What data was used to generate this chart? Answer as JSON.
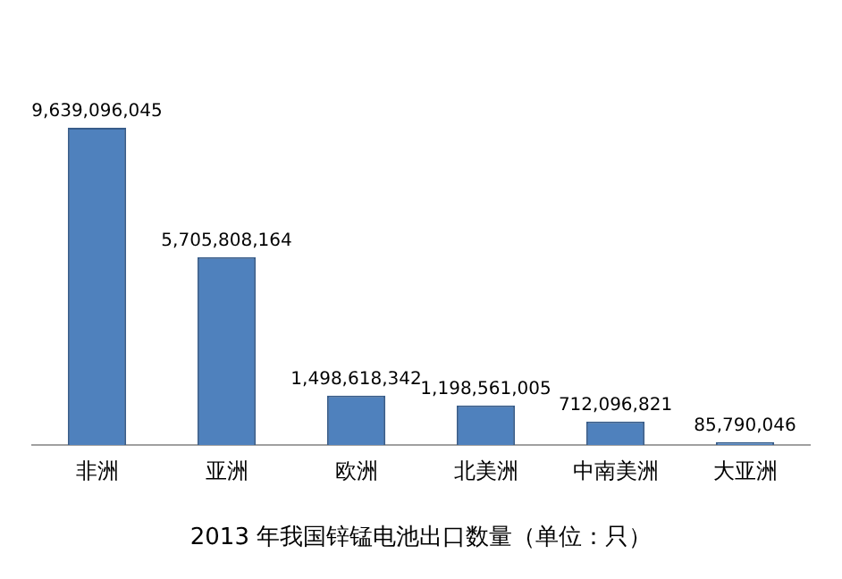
{
  "chart_data": {
    "type": "bar",
    "title": "2013 年我国锌锰电池出口数量（单位：只）",
    "categories": [
      "非洲",
      "亚洲",
      "欧洲",
      "北美洲",
      "中南美洲",
      "大亚洲"
    ],
    "values": [
      9639096045,
      5705808164,
      1498618342,
      1198561005,
      712096821,
      85790046
    ],
    "color": "#4f81bd",
    "value_labels": [
      "9,639,096,045",
      "5,705,808,164",
      "1,498,618,342",
      "1,198,561,005",
      "712,096,821",
      "85,790,046"
    ],
    "grid": false,
    "legend": false
  }
}
